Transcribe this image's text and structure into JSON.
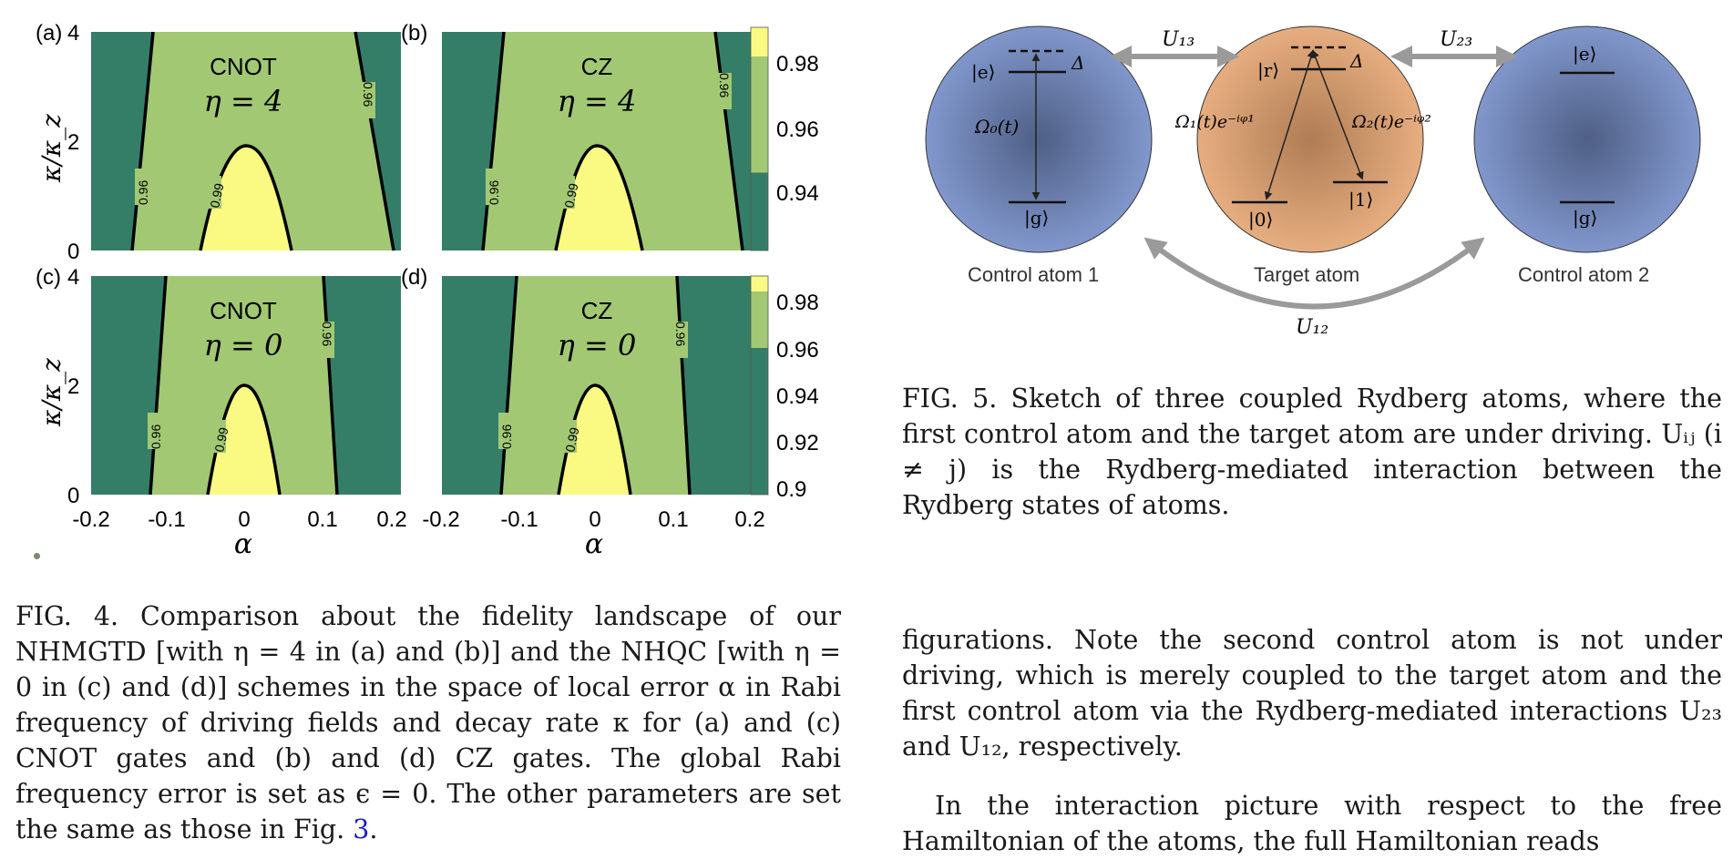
{
  "figure4": {
    "panels": [
      {
        "id": "a",
        "label": "(a)",
        "gate": "CNOT",
        "eta": "η = 4",
        "ticks_y": [
          "4",
          "2",
          "0"
        ],
        "contour_labels": [
          "0.96",
          "0.99",
          "0.96"
        ]
      },
      {
        "id": "b",
        "label": "(b)",
        "gate": "CZ",
        "eta": "η = 4",
        "ticks_y": [],
        "contour_labels": [
          "0.96",
          "0.99",
          "0.96"
        ]
      },
      {
        "id": "c",
        "label": "(c)",
        "gate": "CNOT",
        "eta": "η = 0",
        "ticks_y": [
          "4",
          "2",
          "0"
        ],
        "contour_labels": [
          "0.96",
          "0.99",
          "0.96"
        ]
      },
      {
        "id": "d",
        "label": "(d)",
        "gate": "CZ",
        "eta": "η = 0",
        "ticks_y": [],
        "contour_labels": [
          "0.96",
          "0.99",
          "0.96"
        ]
      }
    ],
    "ylabel": "κ/κ_z",
    "xlabel": "α",
    "x_ticks_left": [
      "-0.2",
      "-0.1",
      "0",
      "0.1",
      "0.2"
    ],
    "x_ticks_right": [
      "-0.2",
      "-0.1",
      "0",
      "0.1",
      "0.2"
    ],
    "colorbar_top": [
      "0.98",
      "0.96",
      "0.94"
    ],
    "colorbar_bottom": [
      "0.98",
      "0.96",
      "0.94",
      "0.92",
      "0.9"
    ],
    "colors": {
      "dark": "#347e68",
      "mid": "#a2c873",
      "light": "#fafa82"
    }
  },
  "figure5": {
    "U13": "U₁₃",
    "U23": "U₂₃",
    "U12": "U₁₂",
    "atom1": {
      "name": "Control atom 1",
      "e": "|e⟩",
      "g": "|g⟩",
      "delta": "Δ",
      "omega": "Ω₀(t)"
    },
    "target": {
      "name": "Target atom",
      "r": "|r⟩",
      "s0": "|0⟩",
      "s1": "|1⟩",
      "delta": "Δ",
      "omega1": "Ω₁(t)e⁻ⁱᵠ¹",
      "omega2": "Ω₂(t)e⁻ⁱᵠ²"
    },
    "atom2": {
      "name": "Control atom 2",
      "e": "|e⟩",
      "g": "|g⟩"
    },
    "colors": {
      "blue": "#8197cc",
      "blue_center": "#4f5f85",
      "orange": "#e0a87a",
      "orange_center": "#b07c55",
      "arrow": "#9a9a9a"
    }
  },
  "captions": {
    "fig4": "FIG. 4.  Comparison about the fidelity landscape of our NHMGTD [with η = 4 in (a) and (b)] and the NHQC [with η = 0 in (c) and (d)] schemes in the space of local error α in Rabi frequency of driving fields and decay rate κ for (a) and (c) CNOT gates and (b) and (d) CZ gates. The global Rabi frequency error is set as ϵ = 0. The other parameters are set the same as those in Fig. ",
    "fig4_ref": "3",
    "fig4_end": ".",
    "fig5": "FIG. 5.  Sketch of three coupled Rydberg atoms, where the first control atom and the target atom are under driving. Uᵢⱼ (i ≠ j) is the Rydberg-mediated interaction between the Rydberg states of atoms.",
    "body1": "figurations. Note the second control atom is not under driving, which is merely coupled to the target atom and the first control atom via the Rydberg-mediated interactions U₂₃ and U₁₂, respectively.",
    "body2": "In the interaction picture with respect to the free Hamiltonian of the atoms, the full Hamiltonian reads"
  }
}
